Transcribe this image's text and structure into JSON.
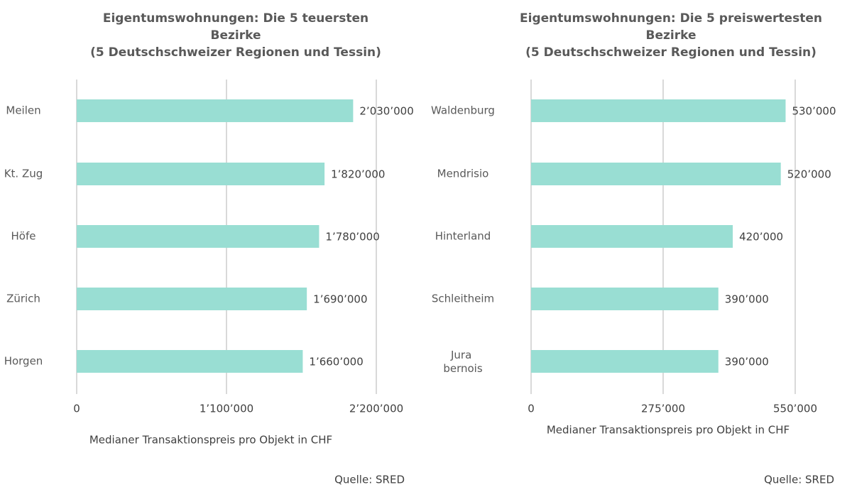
{
  "chart_data": [
    {
      "type": "barh",
      "title": "Eigentumswohnungen: Die 5 teuersten Bezirke\n(5 Deutschschweizer Regionen und Tessin)",
      "categories": [
        "Meilen",
        "Kt. Zug",
        "Höfe",
        "Zürich",
        "Horgen"
      ],
      "values": [
        2030000,
        1820000,
        1780000,
        1690000,
        1660000
      ],
      "value_labels": [
        "2’030’000",
        "1’820’000",
        "1’780’000",
        "1’690’000",
        "1’660’000"
      ],
      "color": "#99ded3",
      "xlim": [
        0,
        2200000
      ],
      "xticks": [
        0,
        {
          "value": 1100000,
          "label": "1’100’000"
        },
        {
          "value": 2200000,
          "label": "2’200’000"
        }
      ],
      "grid": true,
      "x_label": "Medianer Transaktionspreis pro Objekt in CHF",
      "source": "Quelle: SRED"
    },
    {
      "type": "barh",
      "title": "Eigentumswohnungen: Die 5 preiswertesten Bezirke\n(5 Deutschschweizer Regionen und Tessin)",
      "categories": [
        "Waldenburg",
        "Mendrisio",
        "Hinterland",
        "Schleitheim",
        "Jura bernois"
      ],
      "values": [
        530000,
        520000,
        420000,
        390000,
        390000
      ],
      "value_labels": [
        "530’000",
        "520’000",
        "420’000",
        "390’000",
        "390’000"
      ],
      "color": "#99ded3",
      "xlim": [
        0,
        550000
      ],
      "xticks": [
        0,
        {
          "value": 275000,
          "label": "275’000"
        },
        {
          "value": 550000,
          "label": "550’000"
        }
      ],
      "grid": true,
      "x_label": "Medianer Transaktionspreis pro Objekt in CHF",
      "source": "Quelle: SRED"
    }
  ]
}
